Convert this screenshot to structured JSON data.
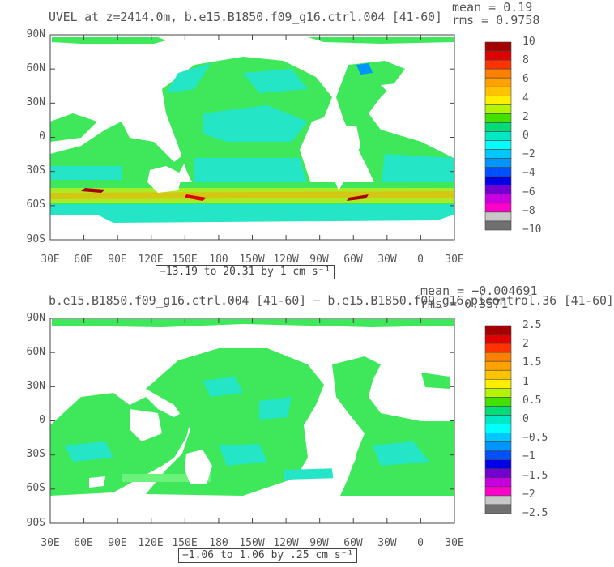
{
  "panels": [
    {
      "title": "UVEL at z=2414.0m, b.e15.B1850.f09_g16.ctrl.004 [41-60]",
      "mean_text": "mean = 0.19",
      "rms_text": "rms = 0.9758",
      "range_text": "−13.19 to 20.31 by 1 cm s⁻¹",
      "colorbar": {
        "labels": [
          "10",
          "8",
          "6",
          "4",
          "2",
          "0",
          "−2",
          "−4",
          "−6",
          "−8",
          "−10"
        ],
        "colors": [
          "#a50000",
          "#e00000",
          "#ff3300",
          "#ff7f00",
          "#ffa200",
          "#ffc300",
          "#ffee00",
          "#b5f400",
          "#43e000",
          "#00dd77",
          "#00e8c4",
          "#00ffff",
          "#00c8ff",
          "#0096ff",
          "#0050ff",
          "#0000e6",
          "#7300d0",
          "#c800e0",
          "#ff00c8",
          "#c8c8c8",
          "#707070"
        ]
      }
    },
    {
      "title": "b.e15.B1850.f09_g16.ctrl.004 [41-60] − b.e15.B1850.f09_g16.picontrol.36 [41-60]",
      "mean_text": "mean = −0.004691",
      "rms_text": "rms = 0.3571",
      "range_text": "−1.06 to 1.06 by .25 cm s⁻¹",
      "colorbar": {
        "labels": [
          "2.5",
          "2",
          "1.5",
          "1",
          "0.5",
          "0",
          "−0.5",
          "−1",
          "−1.5",
          "−2",
          "−2.5"
        ],
        "colors": [
          "#a50000",
          "#e00000",
          "#ff3300",
          "#ff7f00",
          "#ffa200",
          "#ffc300",
          "#ffee00",
          "#b5f400",
          "#43e000",
          "#00dd77",
          "#00e8c4",
          "#00ffff",
          "#00c8ff",
          "#0096ff",
          "#0050ff",
          "#0000e6",
          "#7300d0",
          "#c800e0",
          "#ff00c8",
          "#c8c8c8",
          "#707070"
        ]
      }
    }
  ],
  "lat_labels": [
    "90N",
    "60N",
    "30N",
    "0",
    "30S",
    "60S",
    "90S"
  ],
  "lon_labels": [
    "30E",
    "60E",
    "90E",
    "120E",
    "150E",
    "180",
    "150W",
    "120W",
    "90W",
    "60W",
    "30W",
    "0",
    "30E"
  ],
  "colors": {
    "ocean_green": "#3ee85a",
    "ocean_cyan": "#24e6c6",
    "ocean_light": "#6af27a",
    "land": "#ffffff",
    "frame": "#444444"
  }
}
